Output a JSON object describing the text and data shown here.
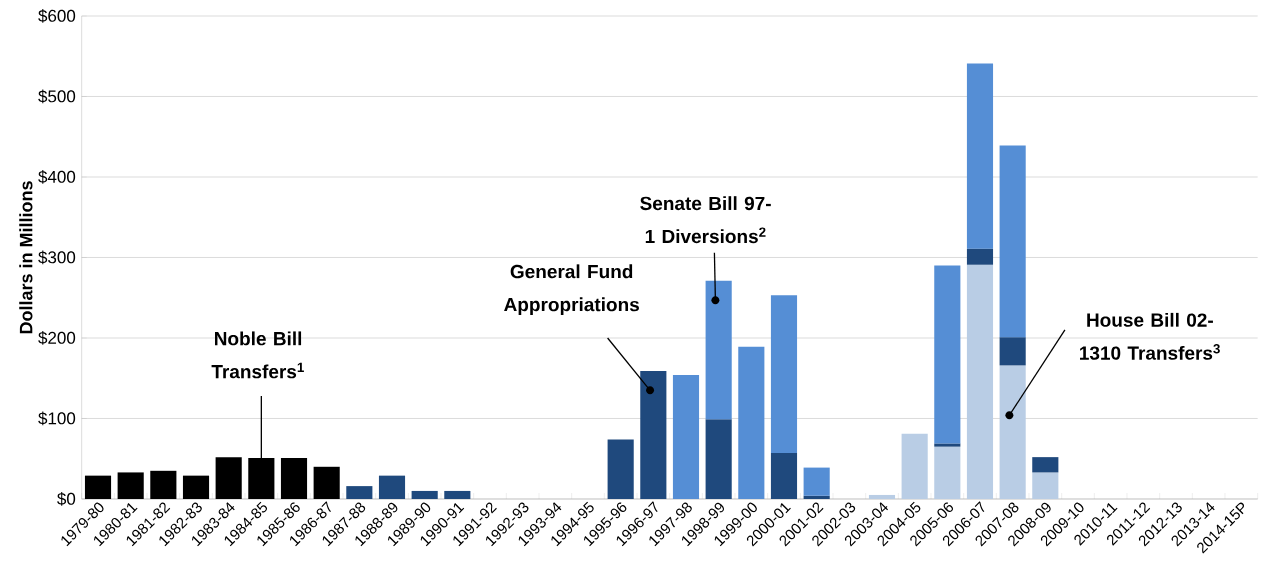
{
  "chart_data": {
    "type": "bar",
    "stacked": true,
    "ylabel": "Dollars in Millions",
    "grid": "y",
    "categories": [
      "1979-80",
      "1980-81",
      "1981-82",
      "1982-83",
      "1983-84",
      "1984-85",
      "1985-86",
      "1986-87",
      "1987-88",
      "1988-89",
      "1989-90",
      "1990-91",
      "1991-92",
      "1992-93",
      "1993-94",
      "1994-95",
      "1995-96",
      "1996-97",
      "1997-98",
      "1998-99",
      "1999-00",
      "2000-01",
      "2001-02",
      "2002-03",
      "2003-04",
      "2004-05",
      "2005-06",
      "2006-07",
      "2007-08",
      "2008-09",
      "2009-10",
      "2010-11",
      "2011-12",
      "2012-13",
      "2013-14",
      "2014-15P"
    ],
    "ylim": [
      0,
      600
    ],
    "yticks": [
      {
        "value": 0,
        "label": "$0"
      },
      {
        "value": 100,
        "label": "$100"
      },
      {
        "value": 200,
        "label": "$200"
      },
      {
        "value": 300,
        "label": "$300"
      },
      {
        "value": 400,
        "label": "$400"
      },
      {
        "value": 500,
        "label": "$500"
      },
      {
        "value": 600,
        "label": "$600"
      }
    ],
    "series": [
      {
        "name": "Noble Bill Transfers$^{1}$",
        "color": "#000000",
        "values": [
          29,
          33,
          35,
          29,
          52,
          51,
          51,
          40,
          null,
          null,
          null,
          null,
          null,
          null,
          null,
          null,
          null,
          null,
          null,
          null,
          null,
          null,
          null,
          null,
          null,
          null,
          null,
          null,
          null,
          null,
          null,
          null,
          null,
          null,
          null,
          null
        ]
      },
      {
        "name": "House Bill 02-1310 Transfers$^{3}$",
        "color": "#b9cde5",
        "values": [
          null,
          null,
          null,
          null,
          null,
          null,
          null,
          null,
          null,
          null,
          null,
          null,
          null,
          null,
          null,
          null,
          null,
          null,
          null,
          null,
          null,
          null,
          null,
          null,
          5,
          81,
          65,
          291,
          166,
          33,
          null,
          null,
          null,
          null,
          null,
          null
        ]
      },
      {
        "name": "General Fund Appropriations",
        "color": "#1f497d",
        "values": [
          null,
          null,
          null,
          null,
          null,
          null,
          null,
          null,
          16,
          29,
          10,
          10,
          null,
          null,
          null,
          null,
          74,
          159,
          null,
          99,
          null,
          57,
          4,
          null,
          null,
          null,
          4,
          20,
          35,
          19,
          null,
          null,
          null,
          null,
          null,
          null
        ]
      },
      {
        "name": "Senate Bill 97-1 Diversions$^{2}$",
        "color": "#558ed5",
        "values": [
          null,
          null,
          null,
          null,
          null,
          null,
          null,
          null,
          null,
          null,
          null,
          null,
          null,
          null,
          null,
          null,
          null,
          null,
          154,
          172,
          189,
          196,
          35,
          null,
          null,
          null,
          221,
          230,
          238,
          null,
          null,
          null,
          null,
          null,
          null,
          null
        ]
      }
    ]
  }
}
